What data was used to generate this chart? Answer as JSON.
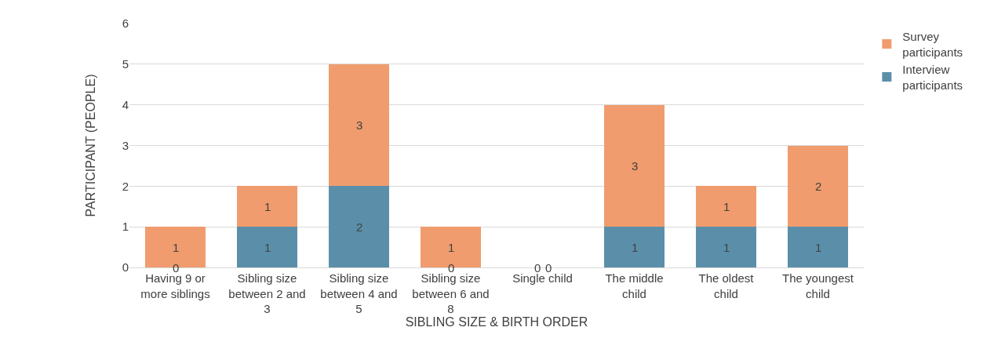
{
  "chart_data": {
    "type": "bar",
    "stacked": true,
    "xlabel": "SIBLING SIZE & BIRTH ORDER",
    "ylabel": "PARTICIPANT (PEOPLE)",
    "categories": [
      "Having 9 or more siblings",
      "Sibling size between 2 and 3",
      "Sibling size between 4 and 5",
      "Sibling size between 6 and 8",
      "Single child",
      "The middle child",
      "The oldest child",
      "The youngest child"
    ],
    "series": [
      {
        "name": "Interview participants",
        "color": "#5b8fa9",
        "values": [
          0,
          1,
          2,
          0,
          0,
          1,
          1,
          1
        ]
      },
      {
        "name": "Survey participants",
        "color": "#f09c6e",
        "values": [
          1,
          1,
          3,
          1,
          0,
          3,
          1,
          2
        ]
      }
    ],
    "ylim": [
      0,
      6
    ],
    "yticks": [
      0,
      1,
      2,
      3,
      4,
      5,
      6
    ],
    "grid": "y",
    "legend": "top right",
    "data_labels": true
  }
}
